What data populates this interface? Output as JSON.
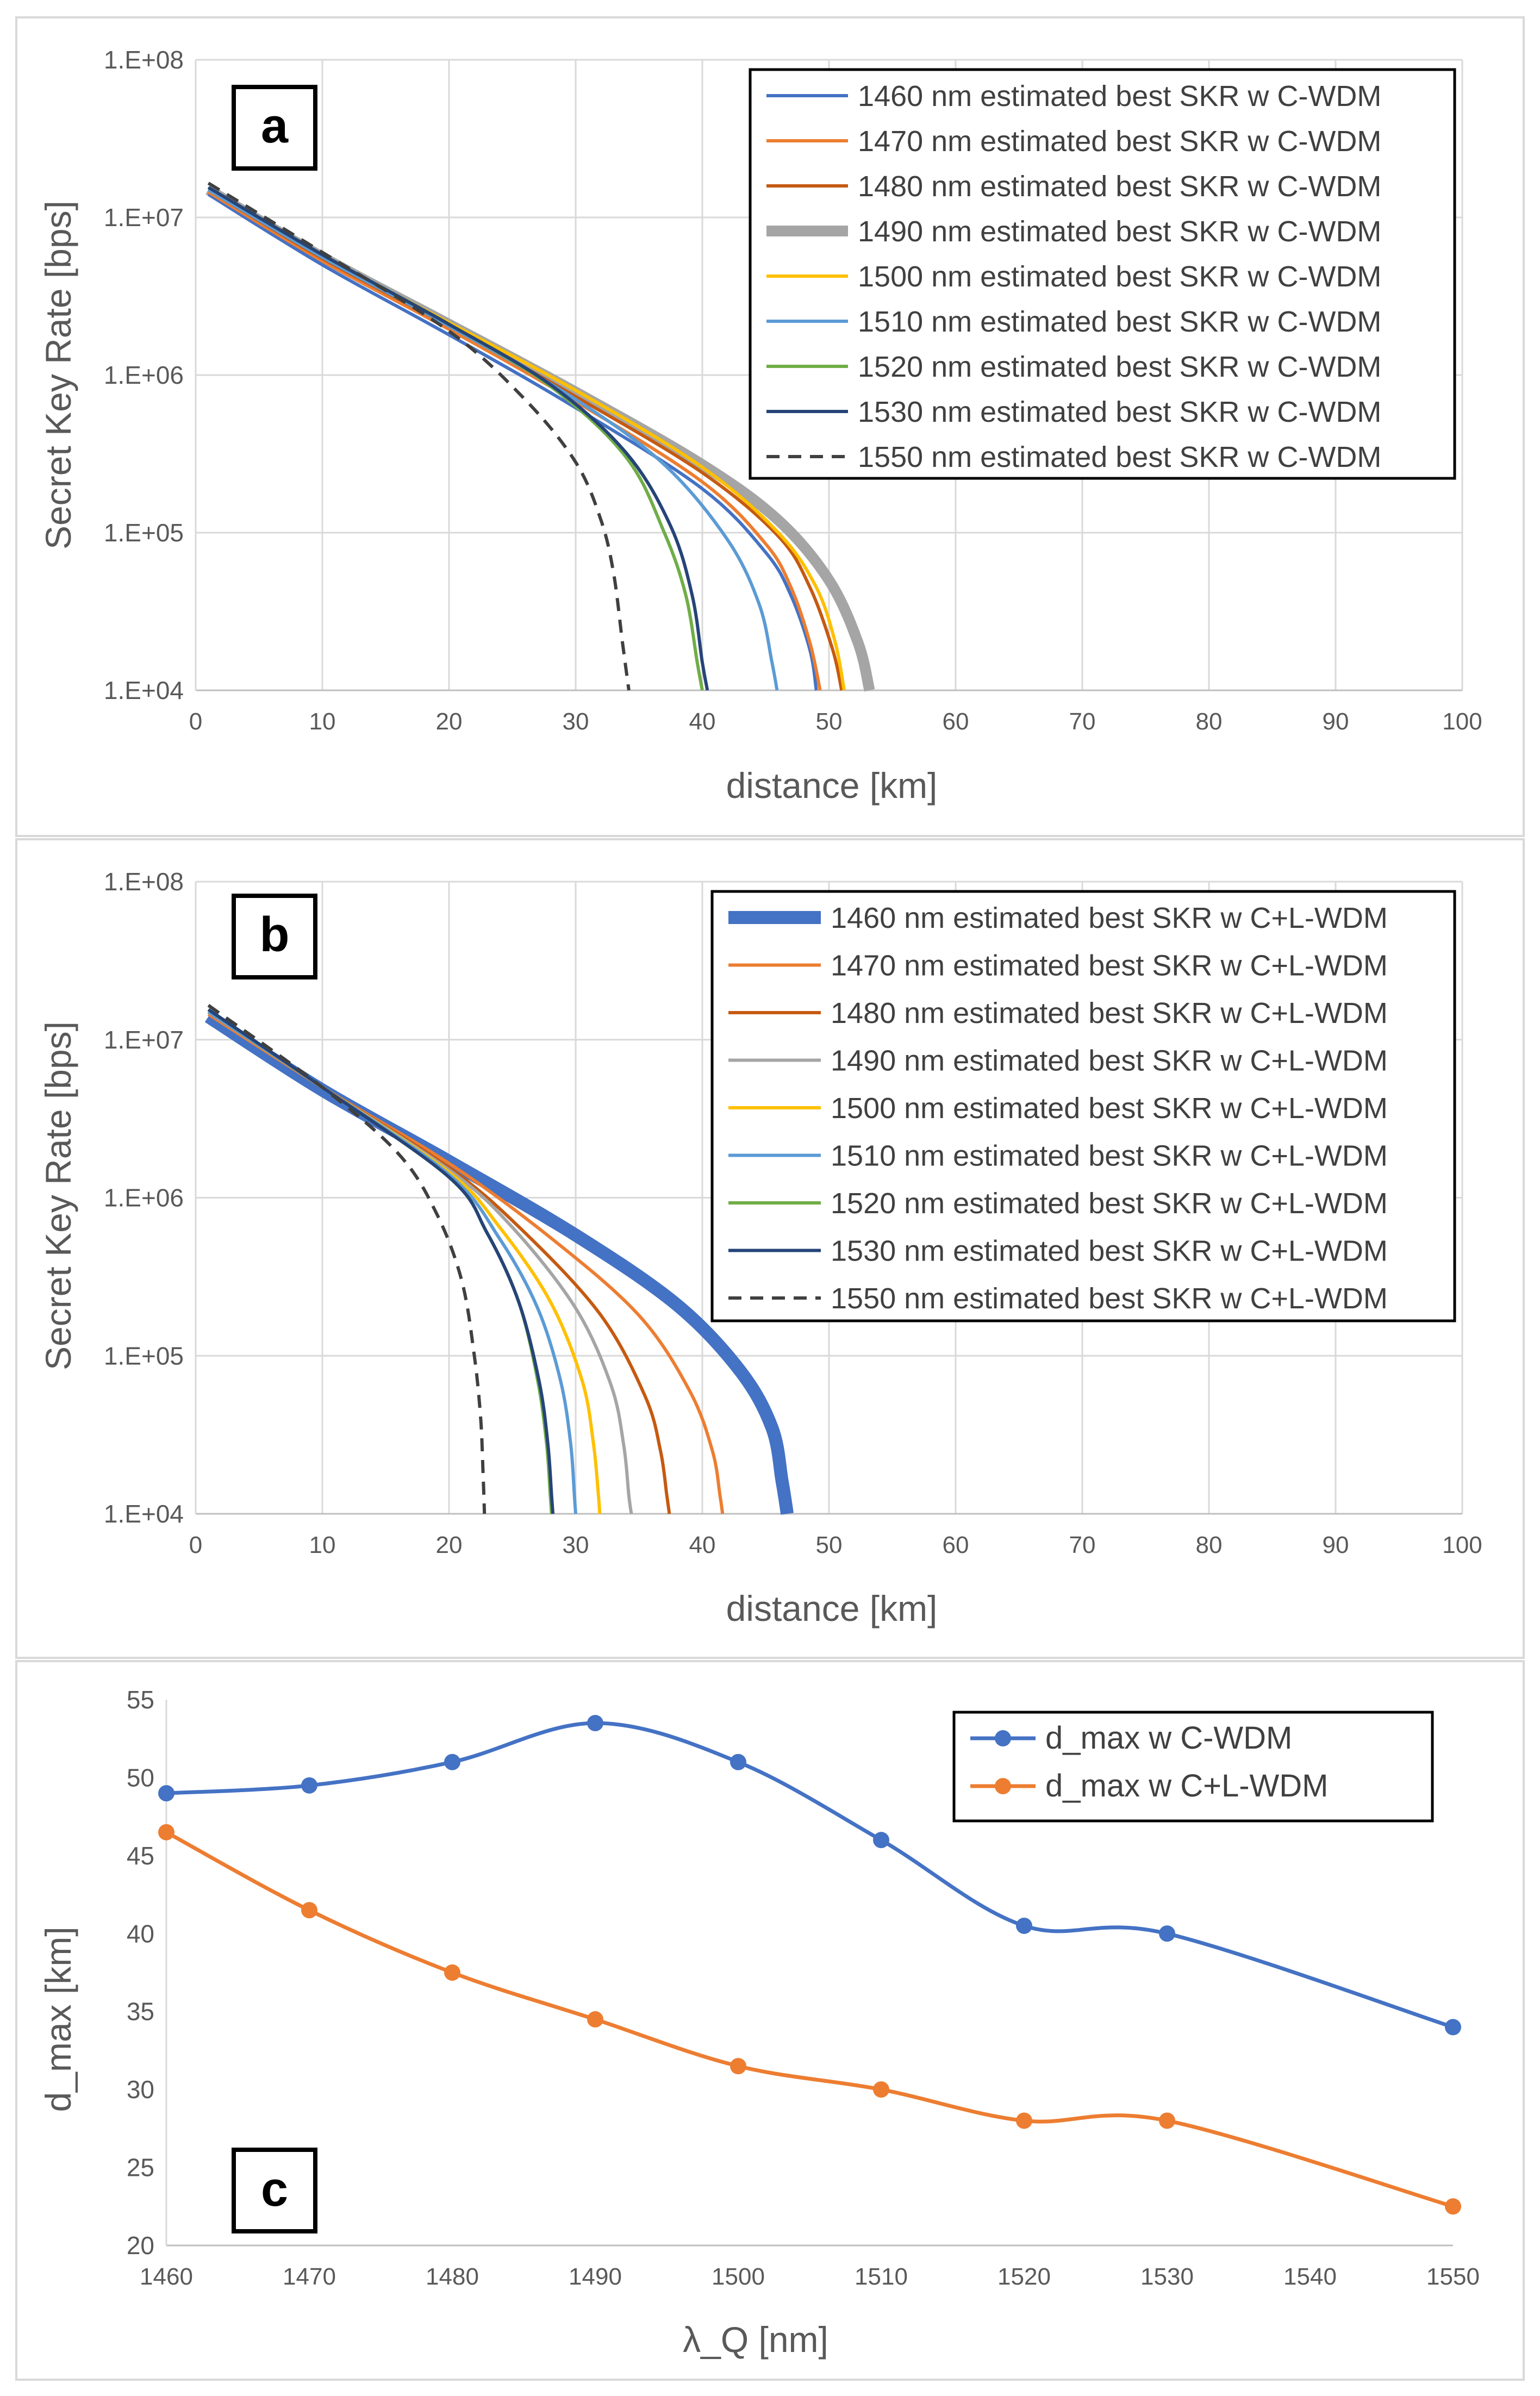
{
  "chart_data": [
    {
      "type": "line",
      "panel_label": "a",
      "xlabel": "distance [km]",
      "ylabel": "Secret Key Rate [bps]",
      "xlim": [
        0,
        100
      ],
      "ylim": [
        10000,
        100000000
      ],
      "yscale": "log",
      "x_ticks": [
        "0",
        "10",
        "20",
        "30",
        "40",
        "50",
        "60",
        "70",
        "80",
        "90",
        "100"
      ],
      "y_ticks": [
        "1.E+04",
        "1.E+05",
        "1.E+06",
        "1.E+07",
        "1.E+08"
      ],
      "legend_position": "top-right",
      "grid": true,
      "series": [
        {
          "name": "1460 nm estimated best SKR w C-WDM",
          "color": "#4472C4",
          "width": "normal",
          "dash": false,
          "x": [
            1,
            10,
            20,
            30,
            40,
            45,
            47,
            48.5,
            49
          ],
          "y": [
            14000000,
            5000000,
            1800000,
            620000,
            190000,
            75000,
            40000,
            18000,
            10000
          ]
        },
        {
          "name": "1470 nm estimated best SKR w C-WDM",
          "color": "#ED7D31",
          "width": "normal",
          "dash": false,
          "x": [
            1,
            10,
            20,
            30,
            40,
            45,
            47,
            48.5,
            49.3
          ],
          "y": [
            14500000,
            5300000,
            1950000,
            680000,
            210000,
            85000,
            45000,
            20000,
            10000
          ]
        },
        {
          "name": "1480 nm estimated best SKR w C-WDM",
          "color": "#C55A11",
          "width": "normal",
          "dash": false,
          "x": [
            1,
            10,
            20,
            30,
            40,
            46,
            48.5,
            50.3,
            51
          ],
          "y": [
            15000000,
            5500000,
            2050000,
            730000,
            240000,
            95000,
            45000,
            18000,
            10000
          ]
        },
        {
          "name": "1490 nm estimated best SKR w C-WDM",
          "color": "#A5A5A5",
          "width": "thick",
          "dash": false,
          "x": [
            1,
            10,
            20,
            30,
            40,
            46,
            50,
            52.3,
            53.2
          ],
          "y": [
            15000000,
            5600000,
            2100000,
            780000,
            270000,
            120000,
            50000,
            20000,
            10000
          ]
        },
        {
          "name": "1500 nm estimated best SKR w C-WDM",
          "color": "#FFC000",
          "width": "normal",
          "dash": false,
          "x": [
            1,
            10,
            20,
            30,
            40,
            46,
            49,
            50.5,
            51.2
          ],
          "y": [
            15000000,
            5700000,
            2150000,
            800000,
            260000,
            100000,
            45000,
            20000,
            10000
          ]
        },
        {
          "name": "1510 nm estimated best SKR w C-WDM",
          "color": "#5B9BD5",
          "width": "normal",
          "dash": false,
          "x": [
            1,
            10,
            20,
            30,
            37,
            42,
            44.5,
            45.5,
            45.9
          ],
          "y": [
            15000000,
            5600000,
            2050000,
            700000,
            270000,
            90000,
            35000,
            15000,
            10000
          ]
        },
        {
          "name": "1520 nm estimated best SKR w C-WDM",
          "color": "#70AD47",
          "width": "normal",
          "dash": false,
          "x": [
            1,
            10,
            20,
            28,
            34,
            37,
            38.7,
            39.6,
            40
          ],
          "y": [
            15500000,
            5800000,
            2100000,
            850000,
            300000,
            100000,
            40000,
            15000,
            10000
          ]
        },
        {
          "name": "1530 nm estimated best SKR w C-WDM",
          "color": "#264478",
          "width": "normal",
          "dash": false,
          "x": [
            1,
            10,
            20,
            28,
            34,
            37.5,
            39.2,
            40,
            40.4
          ],
          "y": [
            15500000,
            5800000,
            2100000,
            870000,
            320000,
            110000,
            40000,
            15000,
            10000
          ]
        },
        {
          "name": "1550 nm estimated best SKR w C-WDM",
          "color": "#404040",
          "width": "normal",
          "dash": true,
          "x": [
            1,
            10,
            20,
            26,
            30,
            32,
            33,
            33.7,
            34.2
          ],
          "y": [
            16500000,
            6000000,
            1900000,
            700000,
            280000,
            120000,
            55000,
            20000,
            10000
          ]
        }
      ]
    },
    {
      "type": "line",
      "panel_label": "b",
      "xlabel": "distance [km]",
      "ylabel": "Secret Key Rate [bps]",
      "xlim": [
        0,
        100
      ],
      "ylim": [
        10000,
        100000000
      ],
      "yscale": "log",
      "x_ticks": [
        "0",
        "10",
        "20",
        "30",
        "40",
        "50",
        "60",
        "70",
        "80",
        "90",
        "100"
      ],
      "y_ticks": [
        "1.E+04",
        "1.E+05",
        "1.E+06",
        "1.E+07",
        "1.E+08"
      ],
      "legend_position": "top-right",
      "grid": true,
      "series": [
        {
          "name": "1460 nm estimated best SKR w C+L-WDM",
          "color": "#4472C4",
          "width": "xthick",
          "dash": false,
          "x": [
            1,
            10,
            20,
            30,
            38,
            43,
            45.5,
            46.3,
            46.7
          ],
          "y": [
            14000000,
            4800000,
            1700000,
            580000,
            210000,
            80000,
            35000,
            16000,
            10000
          ]
        },
        {
          "name": "1470 nm estimated best SKR w C+L-WDM",
          "color": "#ED7D31",
          "width": "normal",
          "dash": false,
          "x": [
            1,
            10,
            20,
            28,
            35,
            39,
            40.8,
            41.4,
            41.6
          ],
          "y": [
            14500000,
            5000000,
            1650000,
            560000,
            180000,
            60000,
            25000,
            13000,
            10000
          ]
        },
        {
          "name": "1480 nm estimated best SKR w C+L-WDM",
          "color": "#C55A11",
          "width": "normal",
          "dash": false,
          "x": [
            1,
            10,
            20,
            26,
            32,
            35.5,
            36.7,
            37.2,
            37.4
          ],
          "y": [
            15000000,
            5000000,
            1550000,
            600000,
            180000,
            55000,
            25000,
            13000,
            10000
          ]
        },
        {
          "name": "1490 nm estimated best SKR w C+L-WDM",
          "color": "#A5A5A5",
          "width": "normal",
          "dash": false,
          "x": [
            1,
            10,
            20,
            25,
            30,
            32.8,
            33.8,
            34.2,
            34.4
          ],
          "y": [
            15000000,
            5000000,
            1500000,
            650000,
            200000,
            65000,
            27000,
            13000,
            10000
          ]
        },
        {
          "name": "1500 nm estimated best SKR w C+L-WDM",
          "color": "#FFC000",
          "width": "normal",
          "dash": false,
          "x": [
            1,
            10,
            20,
            24,
            28,
            30.5,
            31.4,
            31.8,
            31.9
          ],
          "y": [
            15000000,
            5000000,
            1450000,
            650000,
            220000,
            70000,
            28000,
            13000,
            10000
          ]
        },
        {
          "name": "1510 nm estimated best SKR w C+L-WDM",
          "color": "#5B9BD5",
          "width": "normal",
          "dash": false,
          "x": [
            1,
            10,
            20,
            24,
            27,
            28.8,
            29.6,
            29.9,
            30
          ],
          "y": [
            15000000,
            5000000,
            1400000,
            550000,
            200000,
            70000,
            28000,
            13000,
            10000
          ]
        },
        {
          "name": "1520 nm estimated best SKR w C+L-WDM",
          "color": "#70AD47",
          "width": "normal",
          "dash": false,
          "x": [
            1,
            10,
            20,
            23,
            25.5,
            27,
            27.7,
            28,
            28.1
          ],
          "y": [
            15500000,
            5000000,
            1350000,
            600000,
            220000,
            70000,
            28000,
            13000,
            10000
          ]
        },
        {
          "name": "1530 nm estimated best SKR w C+L-WDM",
          "color": "#264478",
          "width": "normal",
          "dash": false,
          "x": [
            1,
            10,
            20,
            23,
            25.5,
            27.1,
            27.8,
            28.1,
            28.2
          ],
          "y": [
            15500000,
            5000000,
            1350000,
            600000,
            220000,
            70000,
            28000,
            13000,
            10000
          ]
        },
        {
          "name": "1550 nm estimated best SKR w C+L-WDM",
          "color": "#404040",
          "width": "normal",
          "dash": true,
          "x": [
            1,
            10,
            16,
            19,
            21,
            22,
            22.5,
            22.7,
            22.8
          ],
          "y": [
            16500000,
            5000000,
            1900000,
            800000,
            300000,
            100000,
            40000,
            17000,
            10000
          ]
        }
      ]
    },
    {
      "type": "line",
      "panel_label": "c",
      "xlabel": "λ_Q [nm]",
      "ylabel": "d_max [km]",
      "xlim": [
        1460,
        1550
      ],
      "ylim": [
        20,
        55
      ],
      "x_ticks": [
        "1460",
        "1470",
        "1480",
        "1490",
        "1500",
        "1510",
        "1520",
        "1530",
        "1540",
        "1550"
      ],
      "y_ticks": [
        "20",
        "25",
        "30",
        "35",
        "40",
        "45",
        "50",
        "55"
      ],
      "legend_position": "top-right",
      "grid": false,
      "markers": true,
      "x": [
        1460,
        1470,
        1480,
        1490,
        1500,
        1510,
        1520,
        1530,
        1550
      ],
      "series": [
        {
          "name": "d_max w C-WDM",
          "color": "#4472C4",
          "values": [
            49,
            49.5,
            51,
            53.5,
            51,
            46,
            40.5,
            40,
            34
          ]
        },
        {
          "name": "d_max w C+L-WDM",
          "color": "#ED7D31",
          "values": [
            46.5,
            41.5,
            37.5,
            34.5,
            31.5,
            30,
            28,
            28,
            22.5
          ]
        }
      ]
    }
  ]
}
